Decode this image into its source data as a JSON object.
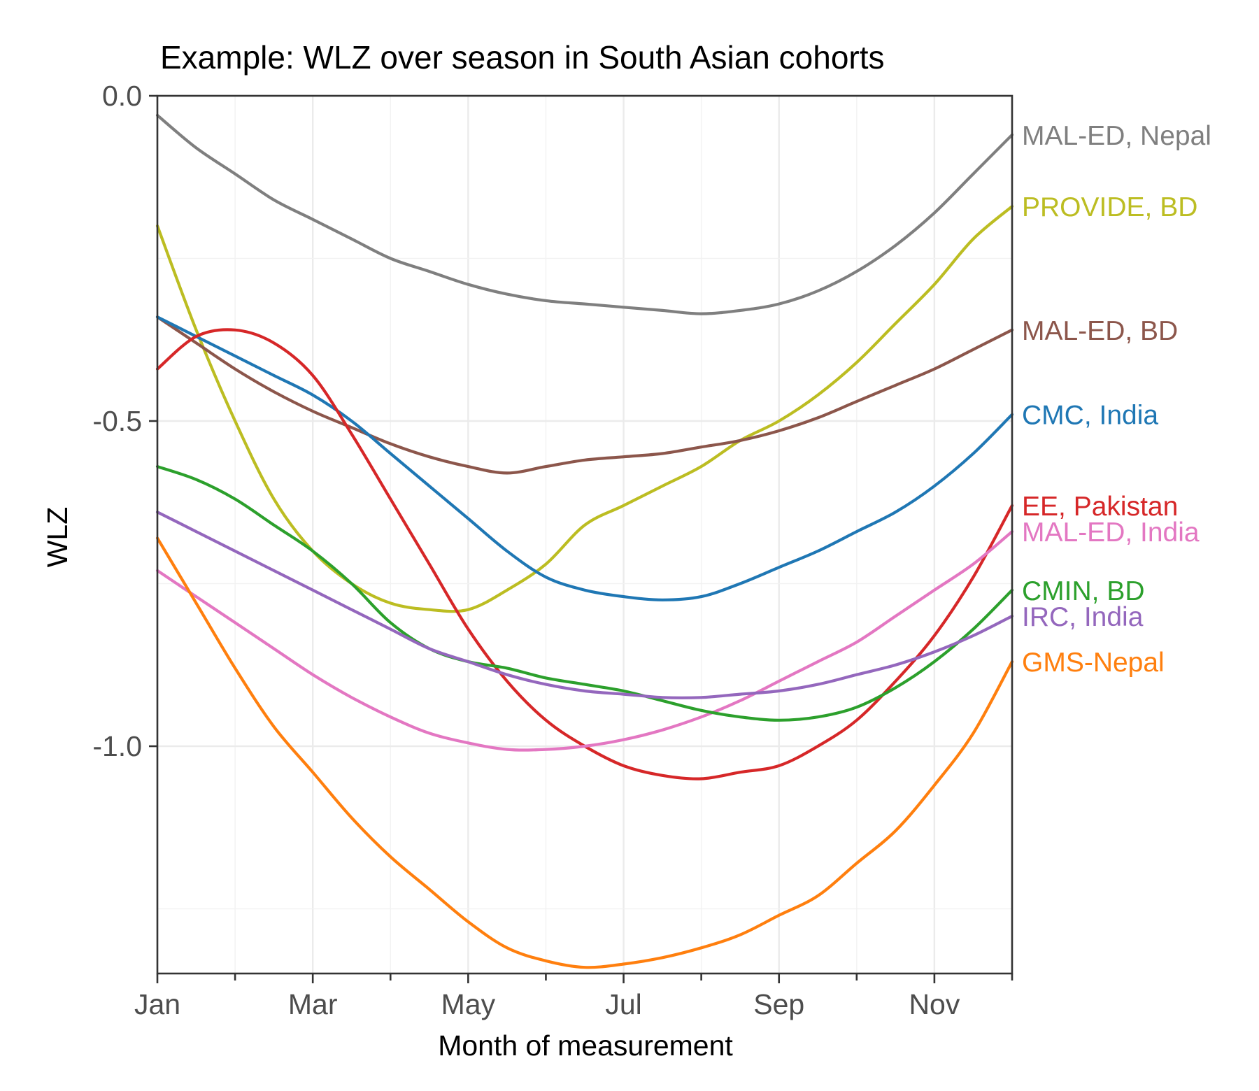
{
  "chart_data": {
    "type": "line",
    "title": "Example: WLZ over season in South Asian cohorts",
    "xlabel": "Month of measurement",
    "ylabel": "WLZ",
    "x_tick_labels": [
      "Jan",
      "Mar",
      "May",
      "Jul",
      "Sep",
      "Nov"
    ],
    "x_tick_months": [
      1,
      3,
      5,
      7,
      9,
      11
    ],
    "y_ticks": [
      "0.0",
      "-0.5",
      "-1.0"
    ],
    "y_tick_values": [
      0.0,
      -0.5,
      -1.0
    ],
    "xlim": [
      1,
      12
    ],
    "ylim": [
      -1.35,
      0.0
    ],
    "grid": true,
    "legend": "direct labels at right end of each line",
    "months": [
      1,
      1.5,
      2,
      2.5,
      3,
      3.5,
      4,
      4.5,
      5,
      5.5,
      6,
      6.5,
      7,
      7.5,
      8,
      8.5,
      9,
      9.5,
      10,
      10.5,
      11,
      11.5,
      12
    ],
    "series": [
      {
        "name": "MAL-ED, Nepal",
        "color": "#7f7f7f",
        "values": [
          -0.03,
          -0.08,
          -0.12,
          -0.16,
          -0.19,
          -0.22,
          -0.25,
          -0.27,
          -0.29,
          -0.305,
          -0.315,
          -0.32,
          -0.325,
          -0.33,
          -0.335,
          -0.33,
          -0.32,
          -0.3,
          -0.27,
          -0.23,
          -0.18,
          -0.12,
          -0.06
        ]
      },
      {
        "name": "PROVIDE, BD",
        "color": "#bcbd22",
        "values": [
          -0.2,
          -0.36,
          -0.5,
          -0.62,
          -0.7,
          -0.75,
          -0.78,
          -0.79,
          -0.79,
          -0.76,
          -0.72,
          -0.66,
          -0.63,
          -0.6,
          -0.57,
          -0.53,
          -0.5,
          -0.46,
          -0.41,
          -0.35,
          -0.29,
          -0.22,
          -0.17
        ]
      },
      {
        "name": "MAL-ED, BD",
        "color": "#8c564b",
        "values": [
          -0.34,
          -0.38,
          -0.42,
          -0.455,
          -0.485,
          -0.51,
          -0.535,
          -0.555,
          -0.57,
          -0.58,
          -0.57,
          -0.56,
          -0.555,
          -0.55,
          -0.54,
          -0.53,
          -0.515,
          -0.495,
          -0.47,
          -0.445,
          -0.42,
          -0.39,
          -0.36
        ]
      },
      {
        "name": "CMC, India",
        "color": "#1f77b4",
        "values": [
          -0.34,
          -0.37,
          -0.4,
          -0.43,
          -0.46,
          -0.5,
          -0.55,
          -0.6,
          -0.65,
          -0.7,
          -0.74,
          -0.76,
          -0.77,
          -0.775,
          -0.77,
          -0.75,
          -0.725,
          -0.7,
          -0.67,
          -0.64,
          -0.6,
          -0.55,
          -0.49
        ]
      },
      {
        "name": "EE, Pakistan",
        "color": "#d62728",
        "values": [
          -0.42,
          -0.37,
          -0.36,
          -0.38,
          -0.43,
          -0.52,
          -0.62,
          -0.72,
          -0.82,
          -0.9,
          -0.96,
          -1.0,
          -1.03,
          -1.045,
          -1.05,
          -1.04,
          -1.03,
          -1.0,
          -0.96,
          -0.9,
          -0.83,
          -0.74,
          -0.63
        ]
      },
      {
        "name": "MAL-ED, India",
        "color": "#e377c2",
        "values": [
          -0.73,
          -0.77,
          -0.81,
          -0.85,
          -0.89,
          -0.925,
          -0.955,
          -0.98,
          -0.995,
          -1.005,
          -1.005,
          -1.0,
          -0.99,
          -0.975,
          -0.955,
          -0.93,
          -0.9,
          -0.87,
          -0.84,
          -0.8,
          -0.76,
          -0.72,
          -0.67
        ]
      },
      {
        "name": "CMIN, BD",
        "color": "#2ca02c",
        "values": [
          -0.57,
          -0.59,
          -0.62,
          -0.66,
          -0.7,
          -0.75,
          -0.81,
          -0.85,
          -0.87,
          -0.88,
          -0.895,
          -0.905,
          -0.915,
          -0.93,
          -0.945,
          -0.955,
          -0.96,
          -0.955,
          -0.94,
          -0.91,
          -0.87,
          -0.82,
          -0.76
        ]
      },
      {
        "name": "IRC, India",
        "color": "#9467bd",
        "values": [
          -0.64,
          -0.67,
          -0.7,
          -0.73,
          -0.76,
          -0.79,
          -0.82,
          -0.85,
          -0.87,
          -0.89,
          -0.905,
          -0.915,
          -0.92,
          -0.925,
          -0.925,
          -0.92,
          -0.915,
          -0.905,
          -0.89,
          -0.875,
          -0.855,
          -0.83,
          -0.8
        ]
      },
      {
        "name": "GMS-Nepal",
        "color": "#ff7f0e",
        "values": [
          -0.68,
          -0.78,
          -0.88,
          -0.97,
          -1.04,
          -1.11,
          -1.17,
          -1.22,
          -1.27,
          -1.31,
          -1.33,
          -1.34,
          -1.335,
          -1.325,
          -1.31,
          -1.29,
          -1.26,
          -1.23,
          -1.18,
          -1.13,
          -1.06,
          -0.98,
          -0.87
        ]
      }
    ]
  }
}
